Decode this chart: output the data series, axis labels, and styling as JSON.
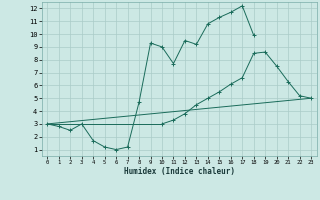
{
  "xlabel": "Humidex (Indice chaleur)",
  "bg_color": "#cce8e4",
  "grid_color": "#aaccc8",
  "line_color": "#1a6b5a",
  "xlim": [
    -0.5,
    23.5
  ],
  "ylim": [
    0.5,
    12.5
  ],
  "xticks": [
    0,
    1,
    2,
    3,
    4,
    5,
    6,
    7,
    8,
    9,
    10,
    11,
    12,
    13,
    14,
    15,
    16,
    17,
    18,
    19,
    20,
    21,
    22,
    23
  ],
  "yticks": [
    1,
    2,
    3,
    4,
    5,
    6,
    7,
    8,
    9,
    10,
    11,
    12
  ],
  "line1_x": [
    0,
    1,
    2,
    3,
    4,
    5,
    6,
    7,
    8,
    9,
    10,
    11,
    12,
    13,
    14,
    15,
    16,
    17,
    18
  ],
  "line1_y": [
    3,
    2.8,
    2.5,
    3.0,
    1.7,
    1.2,
    1.0,
    1.2,
    4.7,
    9.3,
    9.0,
    7.7,
    9.5,
    9.2,
    10.8,
    11.3,
    11.7,
    12.2,
    9.9
  ],
  "line2_x": [
    0,
    10,
    11,
    12,
    13,
    14,
    15,
    16,
    17,
    18,
    19,
    20,
    21,
    22,
    23
  ],
  "line2_y": [
    3,
    3.0,
    3.3,
    3.8,
    4.5,
    5.0,
    5.5,
    6.1,
    6.6,
    8.5,
    8.6,
    7.5,
    6.3,
    5.2,
    5.0
  ],
  "line3_x": [
    0,
    23
  ],
  "line3_y": [
    3.0,
    5.0
  ]
}
